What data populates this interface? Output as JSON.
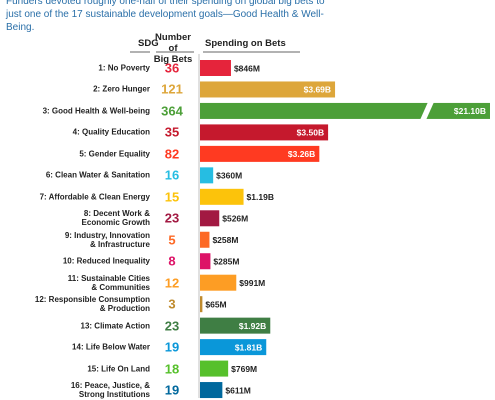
{
  "chart_data": {
    "type": "bar",
    "subtitle": "Funders devoted roughly one-half of their spending on global big bets to just one of the 17 sustainable development goals—Good Health & Well-Being.",
    "category_label": "SDG",
    "categories": [
      "1: No Poverty",
      "2: Zero Hunger",
      "3: Good Health & Well-being",
      "4: Quality Education",
      "5: Gender Equality",
      "6: Clean Water & Sanitation",
      "7: Affordable & Clean Energy",
      "8: Decent Work &\nEconomic Growth",
      "9: Industry, Innovation\n& Infrastructure",
      "10: Reduced Inequality",
      "11: Sustainable Cities\n& Communities",
      "12: Responsible Consumption\n& Production",
      "13: Climate Action",
      "14: Life Below Water",
      "15: Life On Land",
      "16: Peace, Justice, &\nStrong Institutions"
    ],
    "colors": [
      "#e5243b",
      "#dda63a",
      "#4c9f38",
      "#c5192d",
      "#ff3a21",
      "#26bde2",
      "#fcc30b",
      "#a21942",
      "#fd6925",
      "#dd1367",
      "#fd9d24",
      "#bf8b2e",
      "#3f7e44",
      "#0a97d9",
      "#56c02b",
      "#00689d"
    ],
    "series": [
      {
        "name": "Number of\nBig Bets",
        "values": [
          36,
          121,
          364,
          35,
          82,
          16,
          15,
          23,
          5,
          8,
          12,
          3,
          23,
          19,
          18,
          19
        ]
      },
      {
        "name": "Spending on Bets",
        "values": [
          846,
          3690,
          21100,
          3500,
          3260,
          360,
          1190,
          526,
          258,
          285,
          991,
          65,
          1920,
          1810,
          769,
          611
        ],
        "value_labels": [
          "$846M",
          "$3.69B",
          "$21.10B",
          "$3.50B",
          "$3.26B",
          "$360M",
          "$1.19B",
          "$526M",
          "$258M",
          "$285M",
          "$991M",
          "$65M",
          "$1.92B",
          "$1.81B",
          "$769M",
          "$611M"
        ]
      }
    ]
  }
}
